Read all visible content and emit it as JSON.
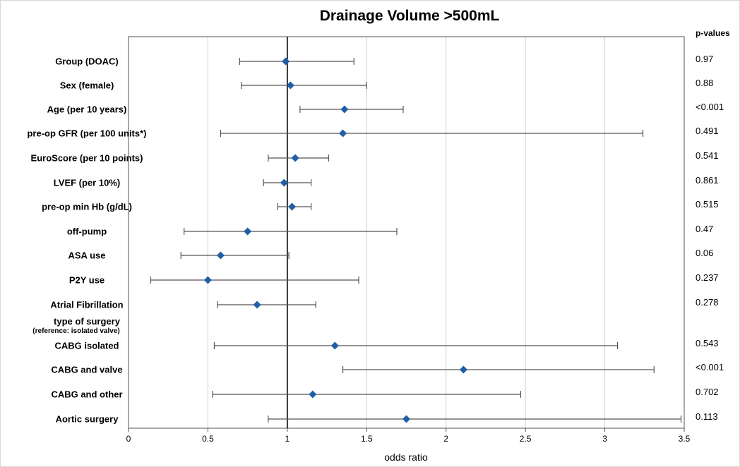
{
  "chart_data": {
    "type": "forest",
    "title": "Drainage Volume >500mL",
    "xlabel": "odds ratio",
    "pvalues_header": "p-values",
    "xlim": [
      0,
      3.5
    ],
    "xticks": [
      "0",
      "0.5",
      "1",
      "1.5",
      "2",
      "2.5",
      "3",
      "3.5"
    ],
    "reference_line": 1,
    "grid": "vertical",
    "marker_color": "#1f5fa8",
    "rows": [
      {
        "label": "Group (DOAC)",
        "or": 0.99,
        "lo": 0.7,
        "hi": 1.42,
        "p": "0.97"
      },
      {
        "label": "Sex (female)",
        "or": 1.02,
        "lo": 0.71,
        "hi": 1.5,
        "p": "0.88"
      },
      {
        "label": "Age (per 10 years)",
        "or": 1.36,
        "lo": 1.08,
        "hi": 1.73,
        "p": "<0.001"
      },
      {
        "label": "pre-op GFR (per 100 units*)",
        "or": 1.35,
        "lo": 0.58,
        "hi": 3.24,
        "p": "0.491"
      },
      {
        "label": "EuroScore (per 10 points)",
        "or": 1.05,
        "lo": 0.88,
        "hi": 1.26,
        "p": "0.541"
      },
      {
        "label": "LVEF (per 10%)",
        "or": 0.98,
        "lo": 0.85,
        "hi": 1.15,
        "p": "0.861"
      },
      {
        "label": "pre-op min Hb (g/dL)",
        "or": 1.03,
        "lo": 0.94,
        "hi": 1.15,
        "p": "0.515"
      },
      {
        "label": "off-pump",
        "or": 0.75,
        "lo": 0.35,
        "hi": 1.69,
        "p": "0.47"
      },
      {
        "label": "ASA use",
        "or": 0.58,
        "lo": 0.33,
        "hi": 1.01,
        "p": "0.06"
      },
      {
        "label": "P2Y use",
        "or": 0.5,
        "lo": 0.14,
        "hi": 1.45,
        "p": "0.237"
      },
      {
        "label": "Atrial Fibrillation",
        "or": 0.81,
        "lo": 0.56,
        "hi": 1.18,
        "p": "0.278"
      },
      {
        "label": "CABG isolated",
        "or": 1.3,
        "lo": 0.54,
        "hi": 3.08,
        "p": "0.543"
      },
      {
        "label": "CABG and valve",
        "or": 2.11,
        "lo": 1.35,
        "hi": 3.31,
        "p": "<0.001"
      },
      {
        "label": "CABG and other",
        "or": 1.16,
        "lo": 0.53,
        "hi": 2.47,
        "p": "0.702"
      },
      {
        "label": "Aortic surgery",
        "or": 1.75,
        "lo": 0.88,
        "hi": 3.48,
        "p": "0.113"
      }
    ],
    "group_heading": {
      "label": "type of surgery",
      "sublabel": "(reference: isolated valve)"
    }
  }
}
